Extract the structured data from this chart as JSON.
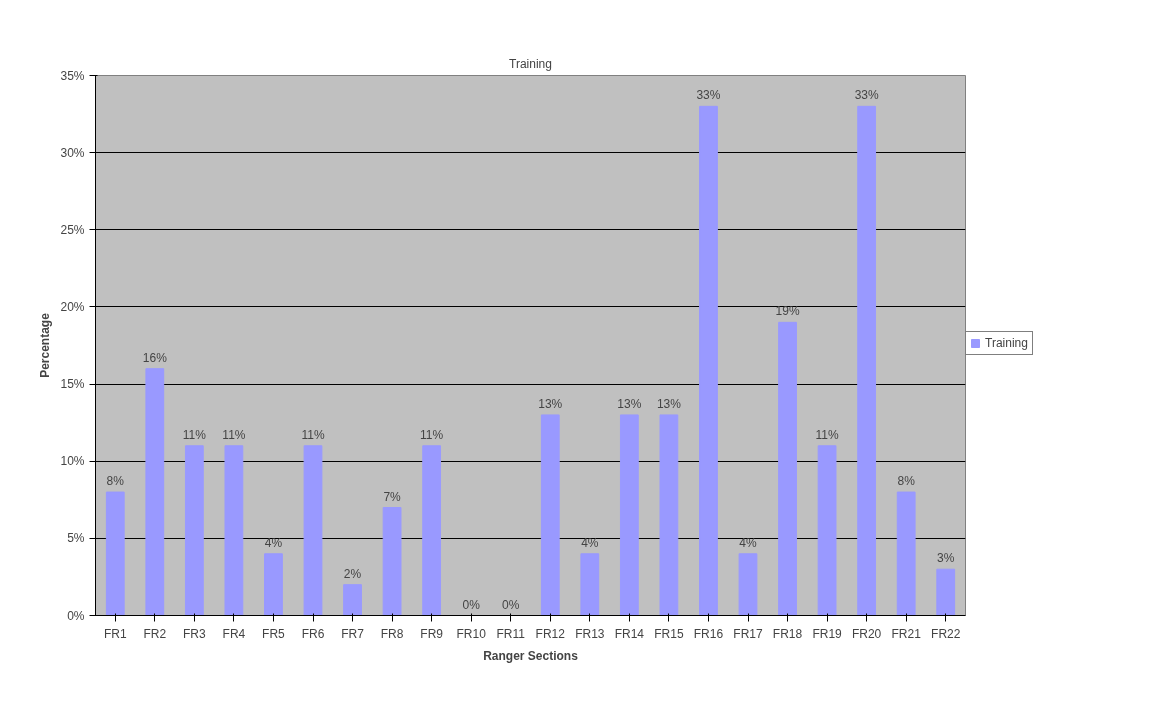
{
  "chart_data": {
    "type": "bar",
    "title": "Training",
    "xlabel": "Ranger Sections",
    "ylabel": "Percentage",
    "categories": [
      "FR1",
      "FR2",
      "FR3",
      "FR4",
      "FR5",
      "FR6",
      "FR7",
      "FR8",
      "FR9",
      "FR10",
      "FR11",
      "FR12",
      "FR13",
      "FR14",
      "FR15",
      "FR16",
      "FR17",
      "FR18",
      "FR19",
      "FR20",
      "FR21",
      "FR22"
    ],
    "series": [
      {
        "name": "Training",
        "color": "#9999ff",
        "values": [
          8,
          16,
          11,
          11,
          4,
          11,
          2,
          7,
          11,
          0,
          0,
          13,
          4,
          13,
          13,
          33,
          4,
          19,
          11,
          33,
          8,
          3
        ],
        "value_labels": [
          "8%",
          "16%",
          "11%",
          "11%",
          "4%",
          "11%",
          "2%",
          "7%",
          "11%",
          "0%",
          "0%",
          "13%",
          "4%",
          "13%",
          "13%",
          "33%",
          "4%",
          "19%",
          "11%",
          "33%",
          "8%",
          "3%"
        ]
      }
    ],
    "ylim": [
      0,
      35
    ],
    "yticks": [
      {
        "value": 0,
        "label": "0%"
      },
      {
        "value": 5,
        "label": "5%"
      },
      {
        "value": 10,
        "label": "10%"
      },
      {
        "value": 15,
        "label": "15%"
      },
      {
        "value": 20,
        "label": "20%"
      },
      {
        "value": 25,
        "label": "25%"
      },
      {
        "value": 30,
        "label": "30%"
      },
      {
        "value": 35,
        "label": "35%"
      }
    ],
    "grid": "y",
    "legend": "right"
  }
}
